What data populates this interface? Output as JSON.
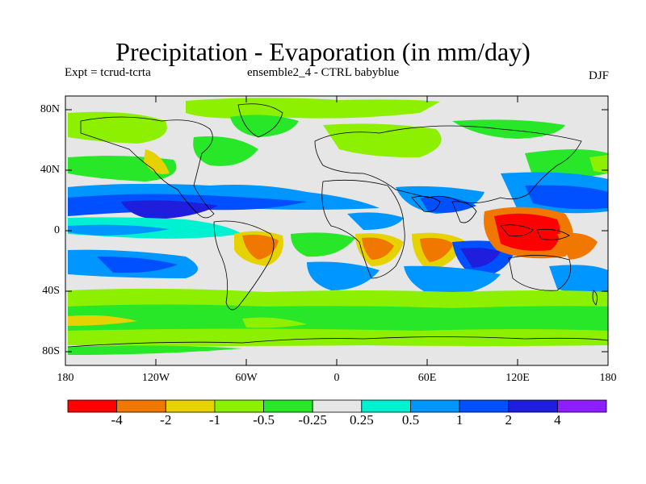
{
  "title": "Precipitation - Evaporation (in mm/day)",
  "subtitle_left": "Expt = tcrud-tcrta",
  "subtitle_center": "ensemble2_4 - CTRL babyblue",
  "season": "DJF",
  "y_axis_labels": [
    "80N",
    "40N",
    "0",
    "40S",
    "80S"
  ],
  "x_axis_labels": [
    "180",
    "120W",
    "60W",
    "0",
    "60E",
    "120E",
    "180"
  ],
  "colorbar": {
    "colors": [
      "#ff0000",
      "#f07800",
      "#e6d200",
      "#8cf000",
      "#28e628",
      "#e6e6e6",
      "#00f0d2",
      "#0096ff",
      "#0050ff",
      "#1e1edc",
      "#8c1eff"
    ],
    "labels": [
      "-4",
      "-2",
      "-1",
      "-0.5",
      "-0.25",
      "0.25",
      "0.5",
      "1",
      "2",
      "4"
    ]
  }
}
